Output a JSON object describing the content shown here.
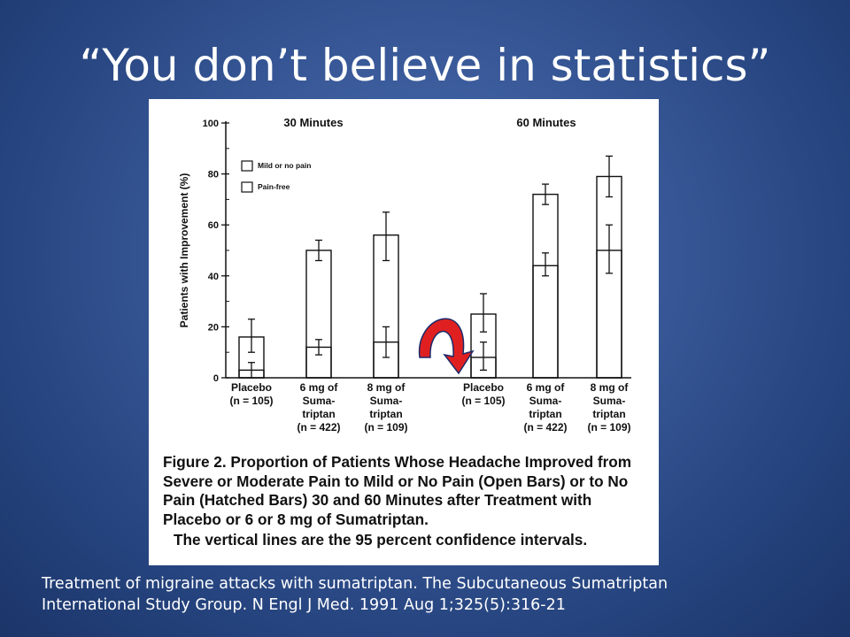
{
  "slide": {
    "title": "“You don’t believe in statistics”",
    "citation_line1": "Treatment of migraine attacks with sumatriptan. The Subcutaneous Sumatriptan",
    "citation_line2": "International Study Group. N Engl J Med. 1991 Aug 1;325(5):316-21"
  },
  "figure": {
    "caption": "Figure 2. Proportion of Patients Whose Headache Improved from Severe or Moderate Pain to Mild or No Pain (Open Bars) or to No Pain (Hatched Bars) 30 and 60 Minutes after Treatment with Placebo or 6 or 8 mg of Sumatriptan.",
    "caption_note": "The vertical lines are the 95 percent confidence intervals.",
    "arrow_color": "#e02020"
  },
  "chart_data": {
    "type": "bar",
    "ylabel": "Patients with Improvement (%)",
    "ylim": [
      0,
      100
    ],
    "yticks": [
      "0",
      "20",
      "40",
      "60",
      "80",
      "100"
    ],
    "groups": [
      "30 Minutes",
      "60 Minutes"
    ],
    "legend": [
      "Mild or no pain",
      "Pain-free"
    ],
    "legend_position": "top-left",
    "categories": [
      [
        "Placebo",
        "(n = 105)"
      ],
      [
        "6 mg of",
        "Suma-",
        "triptan",
        "(n = 422)"
      ],
      [
        "8 mg of",
        "Suma-",
        "triptan",
        "(n = 109)"
      ],
      [
        "Placebo",
        "(n = 105)"
      ],
      [
        "6 mg of",
        "Suma-",
        "triptan",
        "(n = 422)"
      ],
      [
        "8 mg of",
        "Suma-",
        "triptan",
        "(n = 109)"
      ]
    ],
    "series": [
      {
        "name": "Mild or no pain",
        "values": [
          16,
          50,
          56,
          25,
          72,
          79
        ],
        "ci_low": [
          10,
          46,
          46,
          18,
          68,
          71
        ],
        "ci_high": [
          23,
          54,
          65,
          33,
          76,
          87
        ]
      },
      {
        "name": "Pain-free",
        "values": [
          3,
          12,
          14,
          8,
          44,
          50
        ],
        "ci_low": [
          0,
          9,
          8,
          3,
          40,
          41
        ],
        "ci_high": [
          6,
          15,
          20,
          14,
          49,
          60
        ]
      }
    ]
  }
}
